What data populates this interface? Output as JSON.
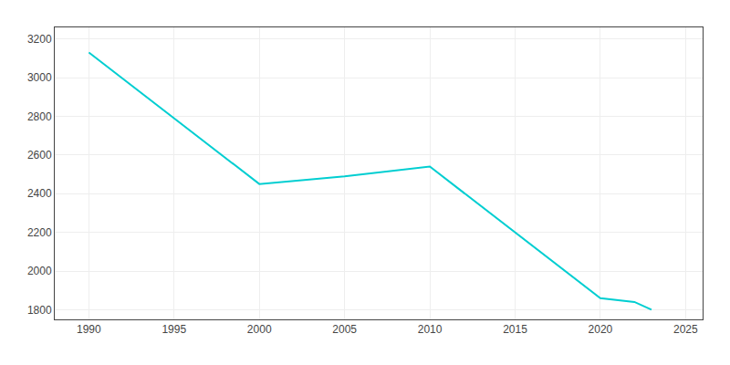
{
  "chart_data": {
    "type": "line",
    "x": [
      1990,
      2000,
      2005,
      2010,
      2020,
      2022,
      2023
    ],
    "values": [
      3130,
      2450,
      2490,
      2540,
      1860,
      1840,
      1800
    ],
    "color": "#00CED1",
    "xlim": [
      1988,
      2026
    ],
    "ylim": [
      1750,
      3260
    ],
    "xticks": [
      1990,
      1995,
      2000,
      2005,
      2010,
      2015,
      2020,
      2025
    ],
    "yticks": [
      1800,
      2000,
      2200,
      2400,
      2600,
      2800,
      3000,
      3200
    ],
    "grid": true
  }
}
